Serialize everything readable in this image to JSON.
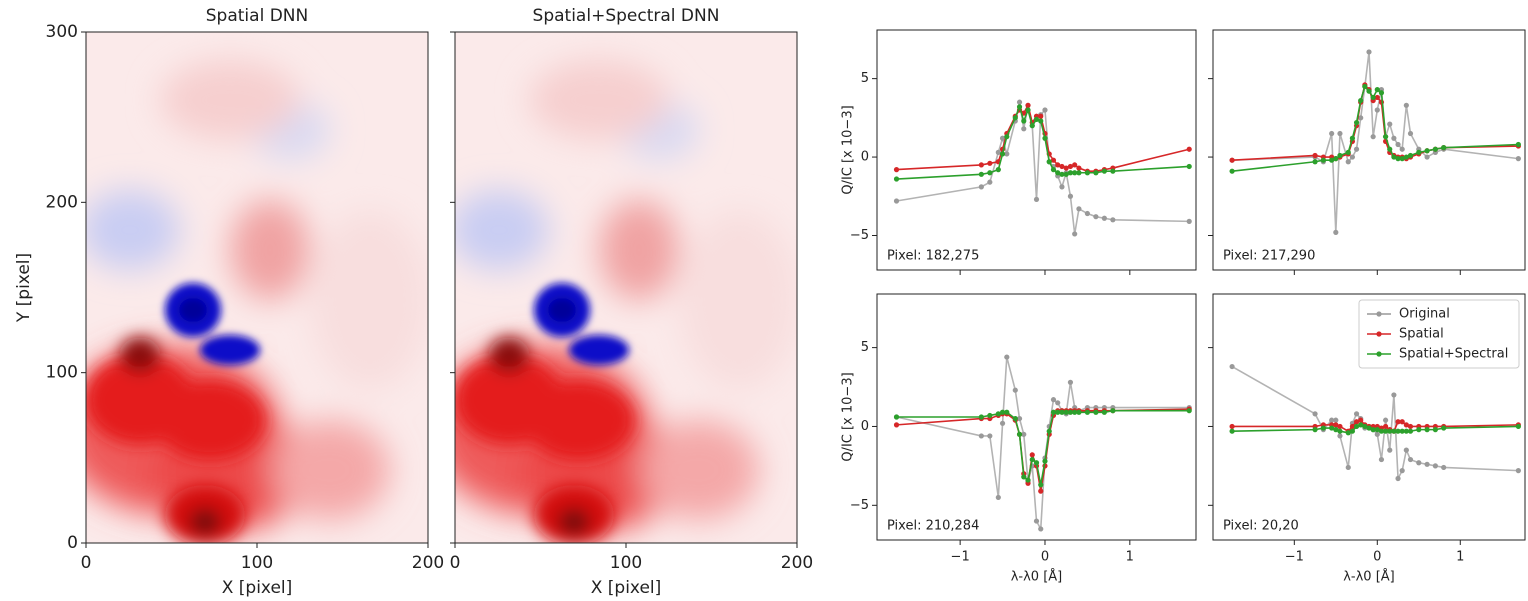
{
  "chart_data": [
    {
      "type": "heatmap",
      "title": "Spatial DNN",
      "xlabel": "X [pixel]",
      "ylabel": "Y [pixel]",
      "xlim": [
        0,
        200
      ],
      "ylim": [
        0,
        300
      ],
      "xticks": [
        0,
        100,
        200
      ],
      "yticks": [
        0,
        100,
        200,
        300
      ]
    },
    {
      "type": "heatmap",
      "title": "Spatial+Spectral DNN",
      "xlabel": "X [pixel]",
      "xlim": [
        0,
        200
      ],
      "ylim": [
        0,
        300
      ],
      "xticks": [
        0,
        100,
        200
      ]
    },
    {
      "type": "line",
      "ylabel": "Q/IC [x 10−3]",
      "annotation": "Pixel: 182,275",
      "xlim": [
        -1.98,
        1.78
      ],
      "ylim": [
        -7.2,
        8.1
      ],
      "xticks": [
        -1,
        0,
        1
      ],
      "yticks": [
        {
          "value": -5,
          "label": "−5"
        },
        0,
        5
      ],
      "x": [
        -1.75,
        -0.75,
        -0.65,
        -0.55,
        -0.5,
        -0.45,
        -0.35,
        -0.3,
        -0.25,
        -0.2,
        -0.15,
        -0.1,
        -0.05,
        0.0,
        0.05,
        0.1,
        0.15,
        0.2,
        0.25,
        0.3,
        0.35,
        0.4,
        0.5,
        0.6,
        0.7,
        0.8,
        1.7
      ],
      "series": [
        {
          "color": "#999999",
          "values": [
            -2.8,
            -1.9,
            -1.6,
            0.3,
            1.2,
            0.2,
            2.3,
            3.5,
            1.8,
            3.3,
            2.0,
            -2.7,
            2.7,
            3.0,
            -0.3,
            -0.6,
            -1.2,
            -1.9,
            -1.0,
            -2.5,
            -4.9,
            -3.3,
            -3.6,
            -3.8,
            -3.9,
            -4.0,
            -4.1
          ]
        },
        {
          "color": "#d62728",
          "values": [
            -0.8,
            -0.5,
            -0.4,
            -0.3,
            0.5,
            1.5,
            2.6,
            3.0,
            2.8,
            3.3,
            2.2,
            2.6,
            2.6,
            1.5,
            0.2,
            -0.2,
            -0.5,
            -0.6,
            -0.7,
            -0.6,
            -0.5,
            -0.7,
            -0.9,
            -0.9,
            -0.8,
            -0.7,
            0.5
          ]
        },
        {
          "color": "#2ca02c",
          "values": [
            -1.4,
            -1.1,
            -1.0,
            -0.8,
            0.2,
            1.3,
            2.5,
            3.2,
            2.3,
            3.0,
            2.0,
            2.4,
            2.3,
            1.2,
            -0.3,
            -0.8,
            -1.0,
            -1.1,
            -1.1,
            -1.0,
            -1.0,
            -1.0,
            -1.0,
            -1.0,
            -0.9,
            -0.9,
            -0.6
          ]
        }
      ]
    },
    {
      "type": "line",
      "annotation": "Pixel: 217,290",
      "xlim": [
        -1.98,
        1.78
      ],
      "ylim": [
        -7.2,
        8.1
      ],
      "xticks": [
        -1,
        0,
        1
      ],
      "yticks": [
        -5,
        0,
        5
      ],
      "x": [
        -1.75,
        -0.75,
        -0.65,
        -0.55,
        -0.5,
        -0.45,
        -0.35,
        -0.3,
        -0.25,
        -0.2,
        -0.15,
        -0.1,
        -0.05,
        0.0,
        0.05,
        0.1,
        0.15,
        0.2,
        0.25,
        0.3,
        0.35,
        0.4,
        0.5,
        0.6,
        0.7,
        0.8,
        1.7
      ],
      "series": [
        {
          "color": "#999999",
          "values": [
            -0.2,
            0.0,
            -0.3,
            1.5,
            -4.8,
            1.5,
            -0.3,
            0.0,
            0.5,
            2.5,
            4.5,
            6.7,
            1.3,
            3.0,
            4.3,
            1.3,
            2.1,
            1.2,
            0.8,
            0.5,
            3.3,
            1.5,
            0.5,
            0.0,
            0.3,
            0.5,
            -0.1
          ]
        },
        {
          "color": "#d62728",
          "values": [
            -0.2,
            0.1,
            0.0,
            0.0,
            -0.1,
            0.0,
            0.2,
            1.0,
            2.0,
            3.5,
            4.6,
            4.3,
            3.6,
            3.8,
            3.5,
            1.0,
            0.3,
            0.1,
            0.0,
            0.0,
            -0.1,
            0.0,
            0.2,
            0.4,
            0.5,
            0.6,
            0.7
          ]
        },
        {
          "color": "#2ca02c",
          "values": [
            -0.9,
            -0.3,
            -0.2,
            -0.2,
            -0.1,
            0.1,
            0.3,
            1.2,
            2.2,
            3.6,
            4.5,
            4.2,
            3.8,
            4.3,
            4.1,
            1.3,
            0.5,
            0.0,
            -0.1,
            -0.1,
            0.0,
            0.1,
            0.3,
            0.4,
            0.5,
            0.6,
            0.8
          ]
        }
      ]
    },
    {
      "type": "line",
      "ylabel": "Q/IC [x 10−3]",
      "xlabel": "λ-λ0 [Å]",
      "annotation": "Pixel: 210,284",
      "xlim": [
        -1.98,
        1.78
      ],
      "ylim": [
        -7.2,
        8.4
      ],
      "xticks": [
        {
          "value": -1,
          "label": "−1"
        },
        0,
        1
      ],
      "yticks": [
        {
          "value": -5,
          "label": "−5"
        },
        0,
        5
      ],
      "x": [
        -1.75,
        -0.75,
        -0.65,
        -0.55,
        -0.5,
        -0.45,
        -0.35,
        -0.3,
        -0.25,
        -0.2,
        -0.15,
        -0.1,
        -0.05,
        0.0,
        0.05,
        0.1,
        0.15,
        0.2,
        0.25,
        0.3,
        0.35,
        0.4,
        0.5,
        0.6,
        0.7,
        0.8,
        1.7
      ],
      "series": [
        {
          "color": "#999999",
          "values": [
            0.6,
            -0.6,
            -0.6,
            -4.5,
            0.2,
            4.4,
            2.3,
            0.5,
            -0.5,
            -3.5,
            -2.5,
            -6.0,
            -6.5,
            -2.0,
            0.0,
            1.7,
            1.5,
            1.0,
            0.8,
            2.8,
            1.2,
            1.0,
            1.2,
            1.2,
            1.2,
            1.2,
            1.2
          ]
        },
        {
          "color": "#d62728",
          "values": [
            0.1,
            0.5,
            0.5,
            0.7,
            0.8,
            0.8,
            0.4,
            -0.5,
            -3.0,
            -3.6,
            -1.8,
            -2.5,
            -4.1,
            -2.5,
            -0.5,
            0.7,
            1.0,
            1.0,
            1.0,
            1.0,
            1.0,
            1.0,
            1.0,
            1.0,
            1.0,
            1.0,
            1.1
          ]
        },
        {
          "color": "#2ca02c",
          "values": [
            0.6,
            0.6,
            0.7,
            0.8,
            0.9,
            0.9,
            0.5,
            -0.5,
            -3.2,
            -3.4,
            -2.1,
            -2.3,
            -3.7,
            -2.2,
            -0.3,
            0.9,
            0.9,
            0.9,
            0.9,
            0.9,
            0.9,
            0.9,
            0.9,
            0.9,
            0.9,
            1.0,
            1.0
          ]
        }
      ]
    },
    {
      "type": "line",
      "xlabel": "λ-λ0 [Å]",
      "annotation": "Pixel: 20,20",
      "legend": "upper right",
      "xlim": [
        -1.98,
        1.78
      ],
      "ylim": [
        -7.2,
        8.4
      ],
      "xticks": [
        {
          "value": -1,
          "label": "−1"
        },
        0,
        1
      ],
      "yticks": [
        -5,
        0,
        5
      ],
      "x": [
        -1.75,
        -0.75,
        -0.65,
        -0.55,
        -0.5,
        -0.45,
        -0.35,
        -0.3,
        -0.25,
        -0.2,
        -0.15,
        -0.1,
        -0.05,
        0.0,
        0.05,
        0.1,
        0.15,
        0.2,
        0.25,
        0.3,
        0.35,
        0.4,
        0.5,
        0.6,
        0.7,
        0.8,
        1.7
      ],
      "series": [
        {
          "name": "Original",
          "color": "#999999",
          "values": [
            3.8,
            0.8,
            -0.2,
            0.4,
            0.4,
            -0.6,
            -2.6,
            0.2,
            0.8,
            0.5,
            -0.1,
            0.0,
            -0.2,
            -0.5,
            -2.1,
            0.4,
            -1.5,
            2.0,
            -3.3,
            -2.8,
            -1.5,
            -2.1,
            -2.3,
            -2.4,
            -2.5,
            -2.6,
            -2.8
          ]
        },
        {
          "name": "Spatial",
          "color": "#d62728",
          "values": [
            0.0,
            0.0,
            0.1,
            0.1,
            0.1,
            0.0,
            -0.3,
            0.0,
            0.3,
            0.4,
            0.1,
            0.0,
            0.0,
            0.0,
            -0.1,
            0.0,
            -0.2,
            -0.3,
            0.3,
            0.3,
            0.1,
            0.0,
            0.0,
            0.0,
            0.0,
            0.0,
            0.1
          ]
        },
        {
          "name": "Spatial+Spectral",
          "color": "#2ca02c",
          "values": [
            -0.3,
            -0.2,
            -0.1,
            -0.1,
            -0.2,
            -0.3,
            -0.4,
            -0.3,
            0.0,
            0.1,
            0.0,
            -0.1,
            -0.2,
            -0.2,
            -0.3,
            -0.3,
            -0.3,
            -0.3,
            -0.3,
            -0.3,
            -0.3,
            -0.3,
            -0.2,
            -0.2,
            -0.2,
            -0.1,
            0.0
          ]
        }
      ]
    }
  ]
}
